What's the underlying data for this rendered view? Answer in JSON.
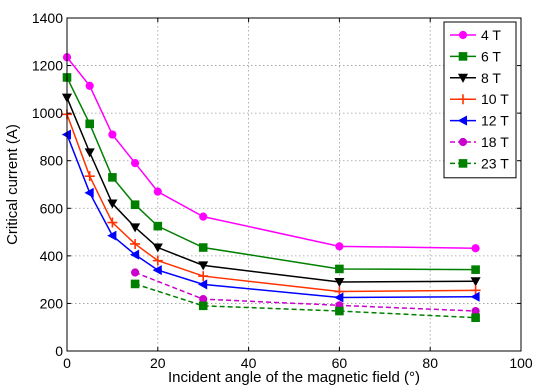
{
  "chart_data": {
    "type": "line",
    "xlabel": "Incident angle of the magnetic field (°)",
    "ylabel": "Critical current (A)",
    "xlim": [
      0,
      100
    ],
    "ylim": [
      0,
      1400
    ],
    "xticks": [
      "0",
      "20",
      "40",
      "60",
      "80",
      "100"
    ],
    "yticks": [
      "0",
      "200",
      "400",
      "600",
      "800",
      "1000",
      "1200",
      "1400"
    ],
    "grid": true,
    "legend_position": "top-right",
    "series": [
      {
        "name": "4 T",
        "color": "#ff00ff",
        "marker": "circle",
        "style": "solid",
        "x": [
          0,
          5,
          10,
          15,
          20,
          30,
          60,
          90
        ],
        "y": [
          1235,
          1115,
          910,
          790,
          670,
          565,
          440,
          432
        ]
      },
      {
        "name": "6 T",
        "color": "#008000",
        "marker": "square",
        "style": "solid",
        "x": [
          0,
          5,
          10,
          15,
          20,
          30,
          60,
          90
        ],
        "y": [
          1150,
          955,
          730,
          615,
          525,
          435,
          345,
          342
        ]
      },
      {
        "name": "8 T",
        "color": "#000000",
        "marker": "triangle-down",
        "style": "solid",
        "x": [
          0,
          5,
          10,
          15,
          20,
          30,
          60,
          90
        ],
        "y": [
          1065,
          835,
          620,
          520,
          435,
          360,
          290,
          293
        ]
      },
      {
        "name": "10 T",
        "color": "#ff3300",
        "marker": "plus",
        "style": "solid",
        "x": [
          0,
          5,
          10,
          15,
          20,
          30,
          60,
          90
        ],
        "y": [
          995,
          735,
          540,
          450,
          380,
          315,
          250,
          255
        ]
      },
      {
        "name": "12 T",
        "color": "#0000ff",
        "marker": "triangle-left",
        "style": "solid",
        "x": [
          0,
          5,
          10,
          15,
          20,
          30,
          60,
          90
        ],
        "y": [
          910,
          665,
          485,
          405,
          340,
          280,
          225,
          228
        ]
      },
      {
        "name": "18 T",
        "color": "#cc00cc",
        "marker": "circle",
        "style": "dashed",
        "x": [
          15,
          30,
          60,
          90
        ],
        "y": [
          330,
          218,
          192,
          168
        ]
      },
      {
        "name": "23 T",
        "color": "#008000",
        "marker": "square",
        "style": "dashed",
        "x": [
          15,
          30,
          60,
          90
        ],
        "y": [
          282,
          190,
          168,
          140
        ]
      }
    ]
  }
}
